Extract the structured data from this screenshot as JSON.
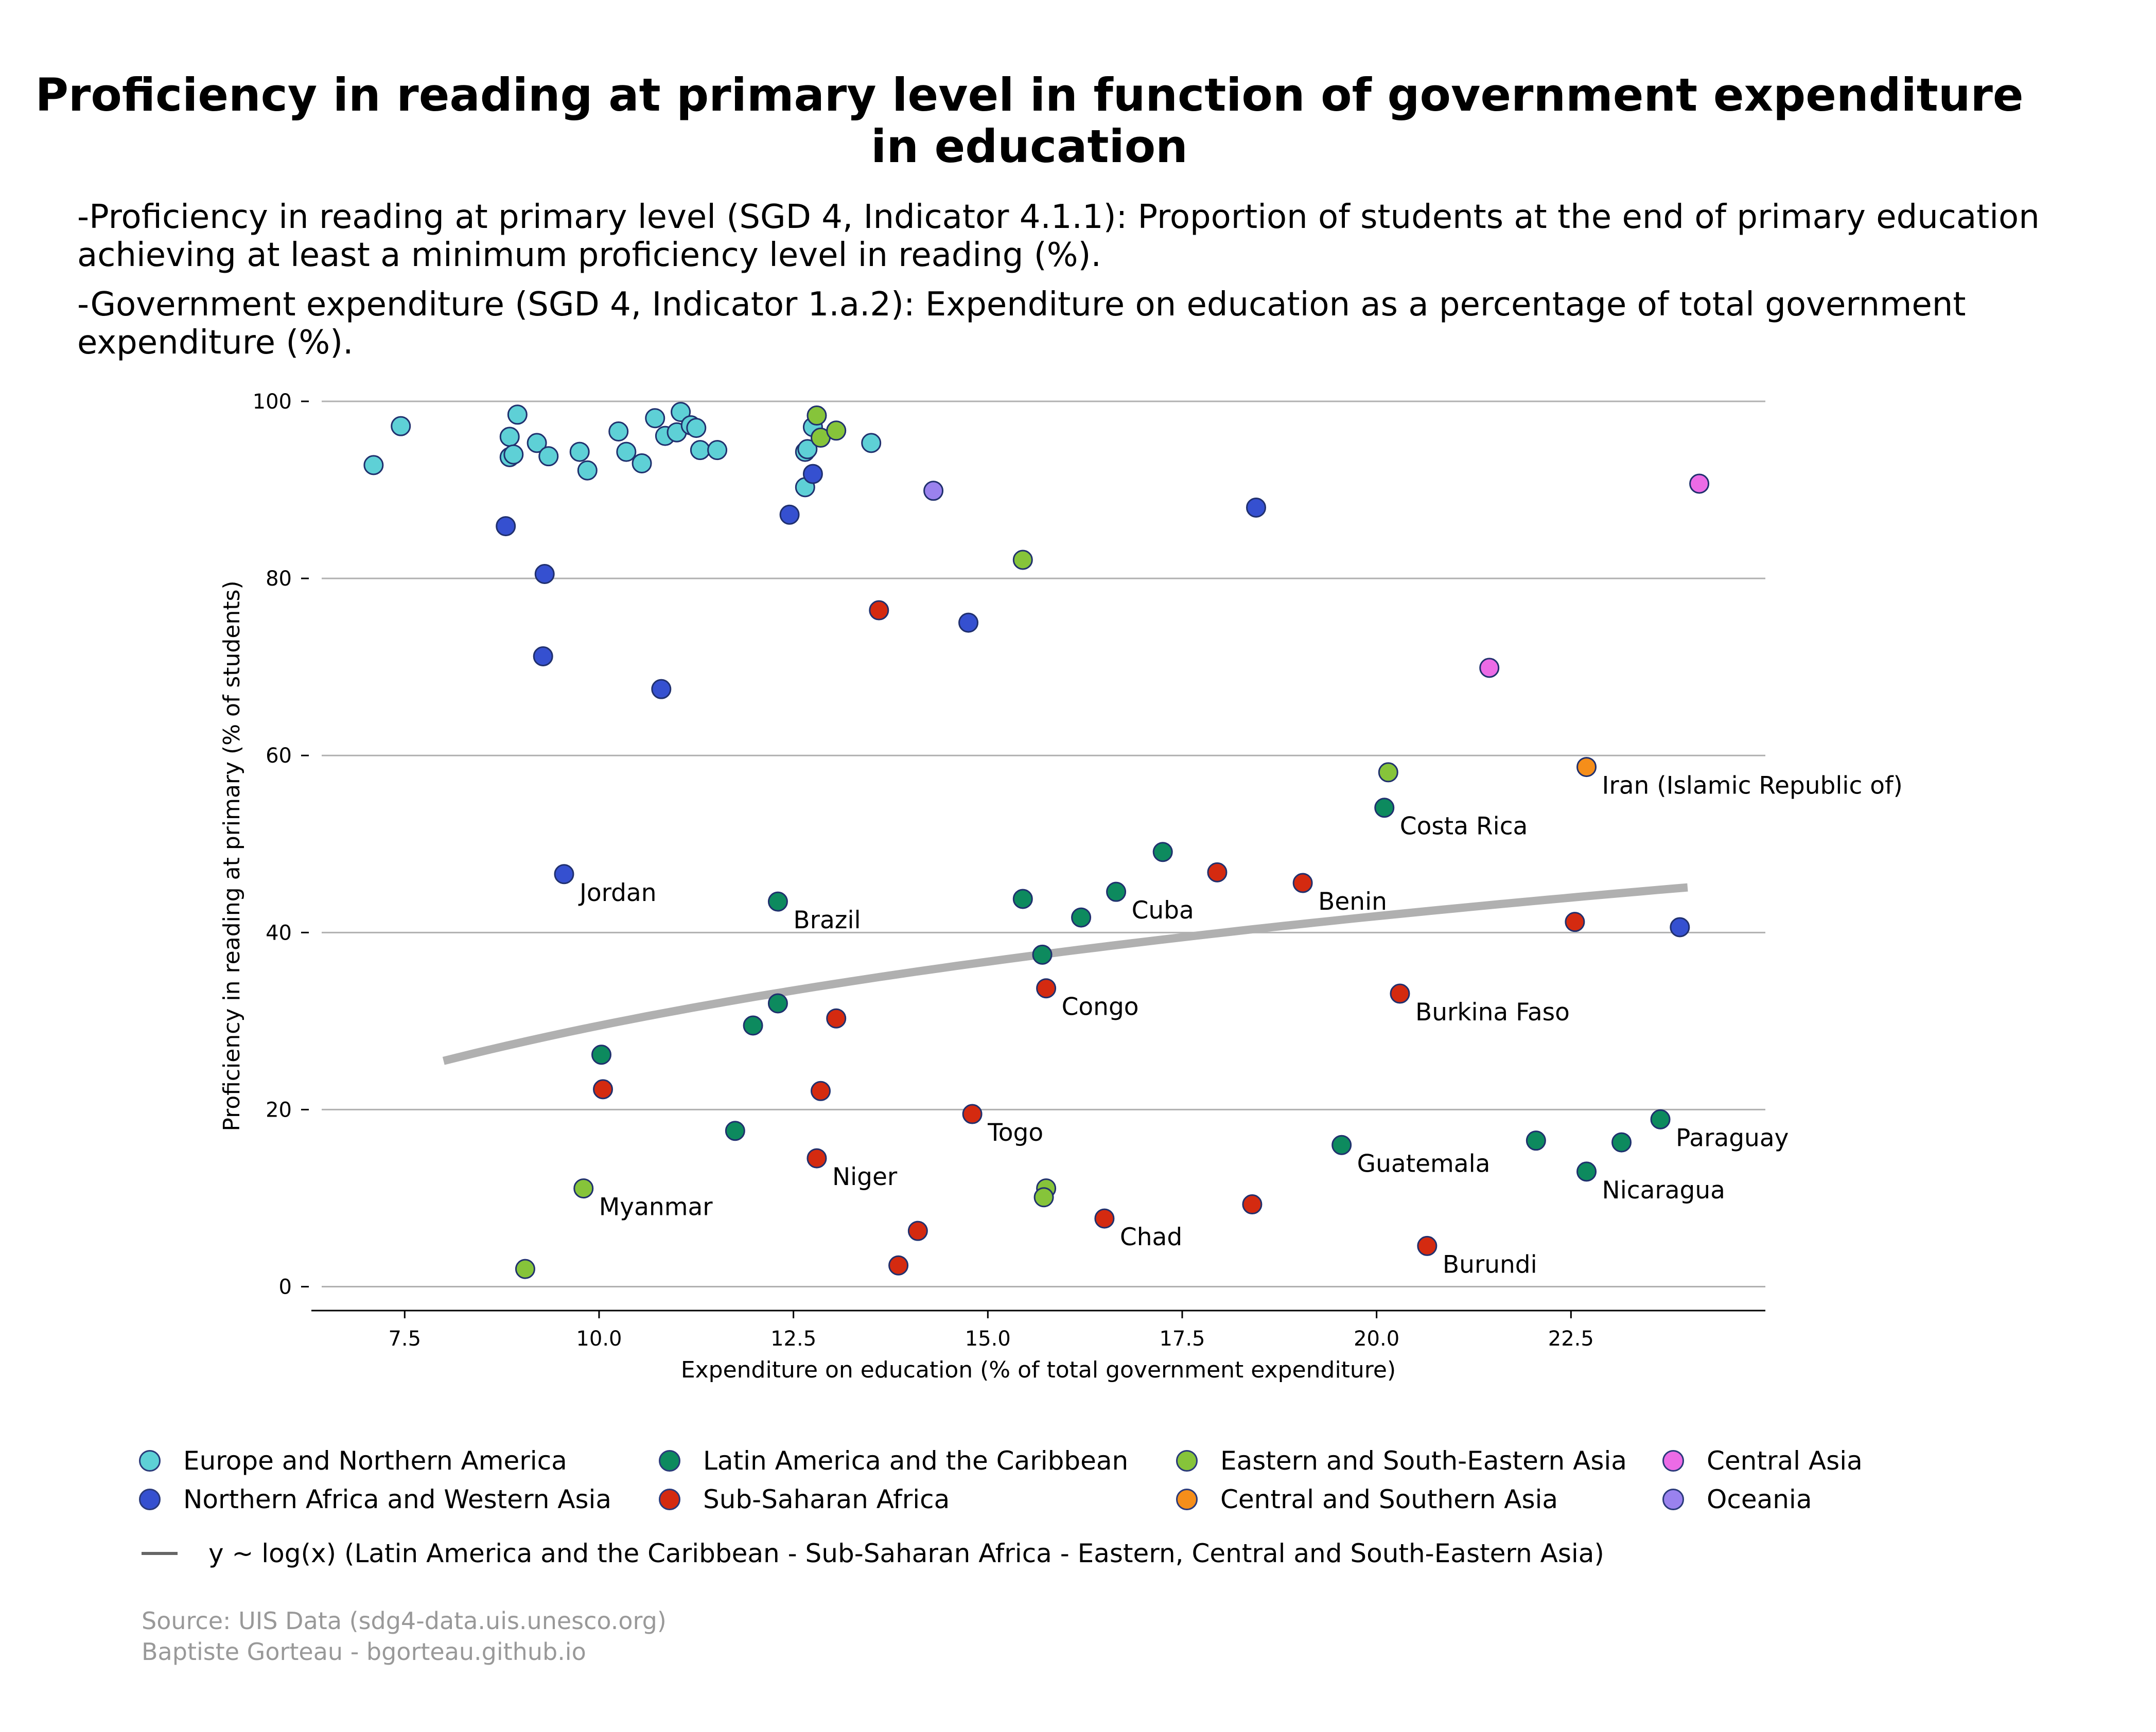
{
  "title": "Proficiency in reading at primary level in function of government expenditure\nin education",
  "subtitle_1": "-Proficiency in reading at primary level (SGD 4, Indicator 4.1.1): Proportion of students at the end of primary education achieving at least a minimum proficiency level in reading (%).",
  "subtitle_2": "-Government expenditure (SGD 4, Indicator 1.a.2): Expenditure on education as a percentage of total government expenditure (%).",
  "fit_legend_label": "y ~ log(x) (Latin America and the Caribbean - Sub-Saharan Africa - Eastern, Central and South-Eastern Asia)",
  "source": "Source: UIS Data (sdg4-data.uis.unesco.org)",
  "author": "Baptiste Gorteau - bgorteau.github.io",
  "chart_data": {
    "type": "scatter",
    "xlabel": "Expenditure on education (% of total government expenditure)",
    "ylabel": "Proficiency in reading at primary (% of students)",
    "xlim": [
      6.3,
      25.0
    ],
    "ylim": [
      -2.7,
      100
    ],
    "x_ticks": [
      7.5,
      10.0,
      12.5,
      15.0,
      17.5,
      20.0,
      22.5
    ],
    "x_tick_labels": [
      "7.5",
      "10.0",
      "12.5",
      "15.0",
      "17.5",
      "20.0",
      "22.5"
    ],
    "y_ticks": [
      0,
      20,
      40,
      60,
      80,
      100
    ],
    "y_tick_labels": [
      "0",
      "20",
      "40",
      "60",
      "80",
      "100"
    ],
    "grid": "horizontal",
    "legend_position": "bottom",
    "series": [
      {
        "name": "Europe and Northern America",
        "color": "#5ed0d6",
        "points": [
          [
            7.1,
            92.8
          ],
          [
            7.45,
            97.2
          ],
          [
            8.85,
            93.7
          ],
          [
            8.85,
            96.0
          ],
          [
            8.9,
            94.0
          ],
          [
            8.95,
            98.5
          ],
          [
            9.2,
            95.3
          ],
          [
            9.35,
            93.8
          ],
          [
            9.75,
            94.3
          ],
          [
            9.85,
            92.2
          ],
          [
            10.25,
            96.6
          ],
          [
            10.35,
            94.3
          ],
          [
            10.55,
            93.0
          ],
          [
            10.72,
            98.1
          ],
          [
            10.85,
            96.1
          ],
          [
            11.0,
            96.5
          ],
          [
            11.05,
            98.8
          ],
          [
            11.18,
            97.3
          ],
          [
            11.25,
            97.0
          ],
          [
            11.3,
            94.5
          ],
          [
            11.52,
            94.5
          ],
          [
            12.65,
            94.3
          ],
          [
            12.68,
            94.6
          ],
          [
            12.65,
            90.3
          ],
          [
            12.75,
            97.1
          ],
          [
            13.5,
            95.3
          ]
        ]
      },
      {
        "name": "Northern Africa and Western Asia",
        "color": "#3550d0",
        "points": [
          [
            8.8,
            85.9
          ],
          [
            9.3,
            80.5
          ],
          [
            9.28,
            71.2
          ],
          [
            10.8,
            67.5
          ],
          [
            12.45,
            87.2
          ],
          [
            12.75,
            91.8
          ],
          [
            14.75,
            75.0
          ],
          [
            18.45,
            88.0
          ],
          [
            9.55,
            46.6
          ],
          [
            23.9,
            40.6
          ]
        ]
      },
      {
        "name": "Latin America and the Caribbean",
        "color": "#0d8a5e",
        "points": [
          [
            20.1,
            54.1
          ],
          [
            12.3,
            43.5
          ],
          [
            15.45,
            43.8
          ],
          [
            16.2,
            41.7
          ],
          [
            16.65,
            44.6
          ],
          [
            17.25,
            49.1
          ],
          [
            15.7,
            37.5
          ],
          [
            12.3,
            32.0
          ],
          [
            11.98,
            29.5
          ],
          [
            10.03,
            26.2
          ],
          [
            11.75,
            17.6
          ],
          [
            19.55,
            16.0
          ],
          [
            22.05,
            16.5
          ],
          [
            22.7,
            13.0
          ],
          [
            23.15,
            16.3
          ],
          [
            23.65,
            18.9
          ]
        ]
      },
      {
        "name": "Sub-Saharan Africa",
        "color": "#d42a10",
        "points": [
          [
            13.6,
            76.4
          ],
          [
            17.95,
            46.8
          ],
          [
            19.05,
            45.6
          ],
          [
            22.55,
            41.2
          ],
          [
            15.75,
            33.7
          ],
          [
            20.3,
            33.1
          ],
          [
            13.05,
            30.3
          ],
          [
            10.05,
            22.3
          ],
          [
            12.85,
            22.1
          ],
          [
            14.8,
            19.5
          ],
          [
            12.8,
            14.5
          ],
          [
            14.1,
            6.3
          ],
          [
            13.85,
            2.4
          ],
          [
            16.5,
            7.7
          ],
          [
            18.4,
            9.3
          ],
          [
            20.65,
            4.6
          ]
        ]
      },
      {
        "name": "Eastern and South-Eastern Asia",
        "color": "#86c43a",
        "points": [
          [
            12.8,
            98.4
          ],
          [
            12.85,
            95.9
          ],
          [
            13.05,
            96.7
          ],
          [
            15.45,
            82.1
          ],
          [
            20.15,
            58.1
          ],
          [
            9.8,
            11.1
          ],
          [
            9.05,
            2.0
          ],
          [
            15.75,
            11.1
          ],
          [
            15.72,
            10.1
          ]
        ]
      },
      {
        "name": "Central and Southern Asia",
        "color": "#f58e1a",
        "points": [
          [
            22.7,
            58.7
          ]
        ]
      },
      {
        "name": "Central Asia",
        "color": "#ec6be6",
        "points": [
          [
            24.15,
            90.7
          ],
          [
            21.45,
            69.9
          ]
        ]
      },
      {
        "name": "Oceania",
        "color": "#9a82ee",
        "points": [
          [
            14.3,
            89.9
          ]
        ]
      }
    ],
    "fit_line": {
      "name": "y ~ log(x) (Latin America and the Caribbean - Sub-Saharan Africa - Eastern, Central and South-Eastern Asia)",
      "color": "#b0b0b0",
      "model": "log",
      "x_range": [
        8.0,
        24.0
      ],
      "y_at_x_range": [
        25.5,
        45.1
      ]
    },
    "annotations": [
      {
        "text": "Iran (Islamic Republic of)",
        "x": 22.7,
        "y": 58.7
      },
      {
        "text": "Costa Rica",
        "x": 20.1,
        "y": 54.1
      },
      {
        "text": "Jordan",
        "x": 9.55,
        "y": 46.6
      },
      {
        "text": "Brazil",
        "x": 12.3,
        "y": 43.5
      },
      {
        "text": "Cuba",
        "x": 16.65,
        "y": 44.6
      },
      {
        "text": "Benin",
        "x": 19.05,
        "y": 45.6
      },
      {
        "text": "Congo",
        "x": 15.75,
        "y": 33.7
      },
      {
        "text": "Burkina Faso",
        "x": 20.3,
        "y": 33.1
      },
      {
        "text": "Togo",
        "x": 14.8,
        "y": 19.5
      },
      {
        "text": "Paraguay",
        "x": 23.65,
        "y": 18.9
      },
      {
        "text": "Guatemala",
        "x": 19.55,
        "y": 16.0
      },
      {
        "text": "Nicaragua",
        "x": 22.7,
        "y": 13.0
      },
      {
        "text": "Niger",
        "x": 12.8,
        "y": 14.5
      },
      {
        "text": "Myanmar",
        "x": 9.8,
        "y": 11.1
      },
      {
        "text": "Chad",
        "x": 16.5,
        "y": 7.7
      },
      {
        "text": "Burundi",
        "x": 20.65,
        "y": 4.6
      }
    ]
  }
}
